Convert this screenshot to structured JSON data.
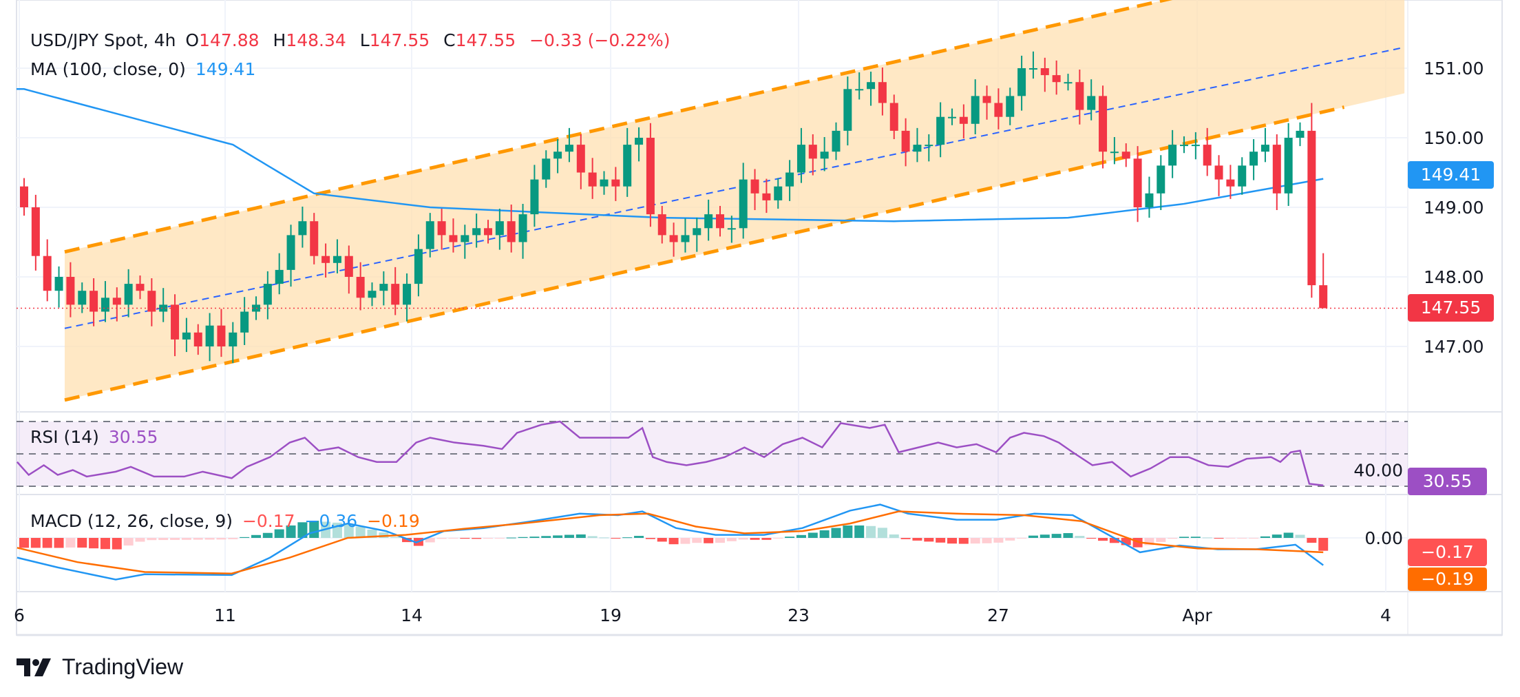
{
  "header": {
    "symbol": "USD/JPY Spot, 4h",
    "o_label": "O",
    "o_value": "147.88",
    "h_label": "H",
    "h_value": "148.34",
    "l_label": "L",
    "l_value": "147.55",
    "c_label": "C",
    "c_value": "147.55",
    "change": "−0.33 (−0.22%)",
    "ma_label": "MA (100, close, 0)",
    "ma_value": "149.41"
  },
  "rsi": {
    "label": "RSI (14)",
    "value": "30.55"
  },
  "macd": {
    "label": "MACD (12, 26, close, 9)",
    "hist": "−0.17",
    "macd": "−0.36",
    "signal": "−0.19"
  },
  "tags": {
    "ma": "149.41",
    "price": "147.55",
    "rsi": "30.55",
    "hist": "−0.17",
    "signal": "−0.19"
  },
  "brand": "TradingView",
  "colors": {
    "up": "#089981",
    "down": "#f23645",
    "ma": "#2196f3",
    "channel": "#ff9800",
    "channel_fill": "#ffe0b2",
    "rsi": "#9c4fc4",
    "macd": "#2196f3",
    "signal": "#ff6d00"
  },
  "chart_data": {
    "type": "candlestick",
    "x_tick_labels": [
      "6",
      "11",
      "14",
      "19",
      "23",
      "27",
      "Apr",
      "4"
    ],
    "price_ticks": [
      "151.00",
      "150.00",
      "149.00",
      "148.00",
      "147.00"
    ],
    "price_ylim": [
      146.0,
      151.8
    ],
    "close": [
      149.0,
      148.3,
      147.8,
      148.0,
      147.6,
      147.8,
      147.5,
      147.7,
      147.6,
      147.9,
      147.8,
      147.5,
      147.6,
      147.1,
      147.2,
      147.0,
      147.3,
      147.0,
      147.2,
      147.5,
      147.6,
      147.9,
      148.1,
      148.6,
      148.8,
      148.3,
      148.2,
      148.3,
      148.0,
      147.7,
      147.8,
      147.9,
      147.6,
      147.9,
      148.4,
      148.8,
      148.6,
      148.5,
      148.6,
      148.7,
      148.6,
      148.8,
      148.5,
      148.9,
      149.4,
      149.7,
      149.8,
      149.9,
      149.5,
      149.3,
      149.4,
      149.3,
      149.9,
      150.0,
      148.9,
      148.6,
      148.5,
      148.6,
      148.7,
      148.9,
      148.7,
      148.7,
      149.4,
      149.2,
      149.1,
      149.3,
      149.5,
      149.9,
      149.7,
      149.8,
      150.1,
      150.7,
      150.7,
      150.8,
      150.5,
      150.1,
      149.8,
      149.9,
      149.9,
      150.3,
      150.3,
      150.2,
      150.6,
      150.5,
      150.3,
      150.6,
      151.0,
      151.0,
      150.9,
      150.8,
      150.8,
      150.4,
      150.6,
      149.8,
      149.8,
      149.7,
      149.0,
      149.2,
      149.6,
      149.9,
      149.9,
      149.9,
      149.6,
      149.4,
      149.3,
      149.6,
      149.8,
      149.9,
      149.2,
      150.0,
      150.1,
      147.88,
      147.55
    ],
    "first_open": 149.3,
    "last_bars_ohlc": [
      [
        150.1,
        150.5,
        147.7,
        147.88
      ],
      [
        147.88,
        148.34,
        147.55,
        147.55
      ]
    ],
    "current_price": 147.55,
    "ma100": [
      [
        0,
        150.7
      ],
      [
        18,
        149.9
      ],
      [
        25,
        149.2
      ],
      [
        35,
        149.0
      ],
      [
        55,
        148.85
      ],
      [
        75,
        148.8
      ],
      [
        90,
        148.85
      ],
      [
        100,
        149.05
      ],
      [
        105,
        149.2
      ],
      [
        112,
        149.41
      ]
    ],
    "channel": {
      "upper": [
        [
          3.5,
          148.36
        ],
        [
          113.8,
          152.57
        ]
      ],
      "middle": [
        [
          3.5,
          147.26
        ],
        [
          119,
          151.3
        ]
      ],
      "lower": [
        [
          3.5,
          146.23
        ],
        [
          113.8,
          150.44
        ]
      ]
    },
    "rsi_levels": [
      70,
      50,
      30
    ],
    "rsi_tick": "40.00",
    "rsi": [
      [
        -0.6,
        45
      ],
      [
        0.4,
        37
      ],
      [
        1.7,
        43
      ],
      [
        2.9,
        37
      ],
      [
        4.2,
        40
      ],
      [
        5.4,
        36
      ],
      [
        7.9,
        39
      ],
      [
        9.2,
        42
      ],
      [
        11.2,
        36
      ],
      [
        13.8,
        36
      ],
      [
        15.4,
        39
      ],
      [
        17.9,
        35
      ],
      [
        19.2,
        42
      ],
      [
        21.2,
        48
      ],
      [
        22.9,
        57
      ],
      [
        24.2,
        60
      ],
      [
        25.4,
        52
      ],
      [
        27.1,
        54
      ],
      [
        28.8,
        48
      ],
      [
        30.4,
        45
      ],
      [
        32.1,
        45
      ],
      [
        33.8,
        57
      ],
      [
        35,
        60
      ],
      [
        37.1,
        57
      ],
      [
        39.6,
        55
      ],
      [
        41.2,
        53
      ],
      [
        42.5,
        63
      ],
      [
        44.6,
        68
      ],
      [
        46.2,
        70
      ],
      [
        47.9,
        60
      ],
      [
        50.4,
        60
      ],
      [
        52.1,
        60
      ],
      [
        53.3,
        66
      ],
      [
        54.2,
        48
      ],
      [
        55.4,
        45
      ],
      [
        57.1,
        43
      ],
      [
        58.8,
        45
      ],
      [
        60.4,
        48
      ],
      [
        62.1,
        54
      ],
      [
        63.8,
        48
      ],
      [
        65.4,
        56
      ],
      [
        67.1,
        60
      ],
      [
        68.8,
        54
      ],
      [
        70.4,
        69
      ],
      [
        72.9,
        66
      ],
      [
        74.2,
        68
      ],
      [
        75.4,
        51
      ],
      [
        77.1,
        54
      ],
      [
        78.8,
        57
      ],
      [
        80.4,
        54
      ],
      [
        82.1,
        56
      ],
      [
        83.8,
        51
      ],
      [
        85,
        60
      ],
      [
        86.2,
        63
      ],
      [
        87.9,
        61
      ],
      [
        89.2,
        57
      ],
      [
        90.4,
        51
      ],
      [
        92.1,
        43
      ],
      [
        93.8,
        45
      ],
      [
        95.4,
        36
      ],
      [
        97.1,
        41
      ],
      [
        98.8,
        48
      ],
      [
        100.4,
        48
      ],
      [
        102.1,
        43
      ],
      [
        103.8,
        42
      ],
      [
        105.4,
        47
      ],
      [
        107.5,
        48
      ],
      [
        108.3,
        45
      ],
      [
        109.2,
        51
      ],
      [
        110,
        52
      ],
      [
        110.8,
        31.5
      ],
      [
        112,
        30.55
      ]
    ],
    "macd_zero_tick": "0.00",
    "macd": [
      [
        -0.6,
        -0.26
      ],
      [
        2.9,
        -0.39
      ],
      [
        7.9,
        -0.55
      ],
      [
        10.4,
        -0.48
      ],
      [
        17.9,
        -0.49
      ],
      [
        21.2,
        -0.26
      ],
      [
        24.6,
        0.06
      ],
      [
        27.9,
        0.19
      ],
      [
        31.2,
        0.09
      ],
      [
        33.8,
        -0.06
      ],
      [
        36.2,
        0.09
      ],
      [
        39.6,
        0.13
      ],
      [
        43.8,
        0.22
      ],
      [
        47.9,
        0.32
      ],
      [
        51.2,
        0.3
      ],
      [
        53.3,
        0.35
      ],
      [
        56.2,
        0.13
      ],
      [
        59.6,
        0.04
      ],
      [
        63.8,
        0.04
      ],
      [
        67.1,
        0.13
      ],
      [
        71.2,
        0.36
      ],
      [
        73.8,
        0.44
      ],
      [
        76.2,
        0.32
      ],
      [
        80.4,
        0.24
      ],
      [
        83.8,
        0.24
      ],
      [
        87.1,
        0.32
      ],
      [
        90.4,
        0.3
      ],
      [
        92.9,
        0.09
      ],
      [
        96.2,
        -0.19
      ],
      [
        99.6,
        -0.1
      ],
      [
        102.9,
        -0.15
      ],
      [
        106.2,
        -0.15
      ],
      [
        109.6,
        -0.09
      ],
      [
        112,
        -0.36
      ]
    ],
    "signal": [
      [
        -0.6,
        -0.13
      ],
      [
        4.6,
        -0.32
      ],
      [
        10.4,
        -0.45
      ],
      [
        17.9,
        -0.47
      ],
      [
        22.9,
        -0.26
      ],
      [
        27.9,
        0.0
      ],
      [
        32.9,
        0.04
      ],
      [
        37.9,
        0.12
      ],
      [
        42.9,
        0.19
      ],
      [
        49.6,
        0.3
      ],
      [
        53.8,
        0.32
      ],
      [
        57.9,
        0.15
      ],
      [
        62.1,
        0.06
      ],
      [
        67.1,
        0.09
      ],
      [
        71.2,
        0.19
      ],
      [
        75.4,
        0.35
      ],
      [
        80.4,
        0.32
      ],
      [
        86.2,
        0.3
      ],
      [
        91.2,
        0.22
      ],
      [
        96.2,
        -0.06
      ],
      [
        101.2,
        -0.14
      ],
      [
        106.2,
        -0.15
      ],
      [
        112,
        -0.19
      ]
    ]
  }
}
